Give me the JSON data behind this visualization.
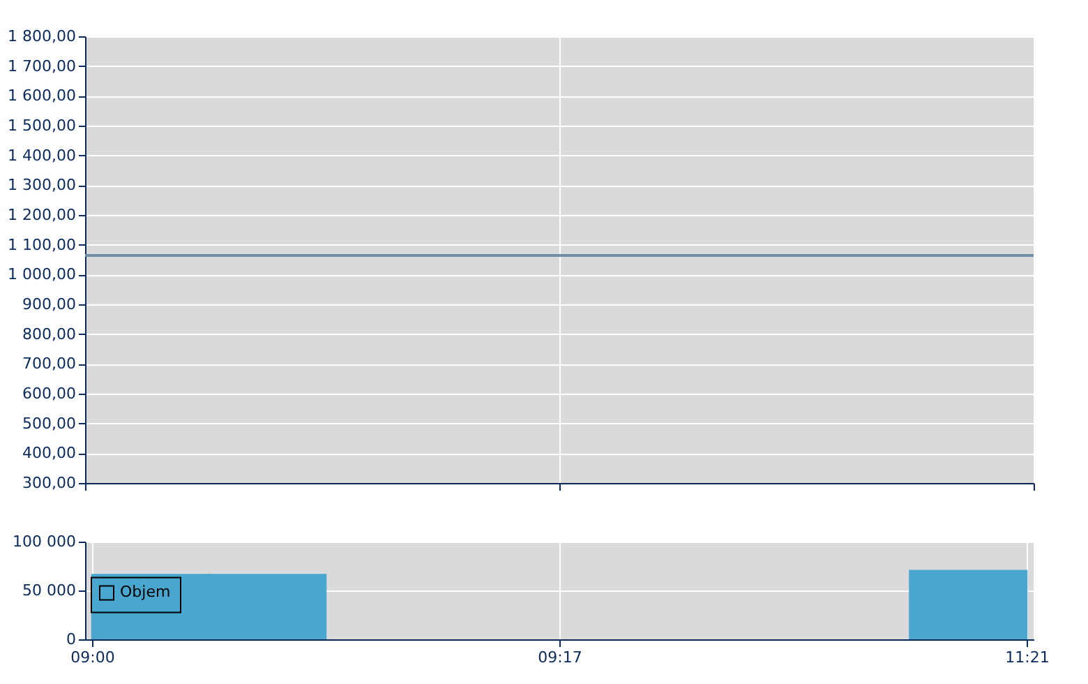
{
  "chart_data": [
    {
      "type": "line",
      "categories": [
        null,
        null,
        null,
        null,
        null,
        null,
        null,
        null,
        null,
        null,
        null,
        null,
        null,
        null,
        null,
        null,
        null
      ],
      "values": [
        1064,
        1064,
        1064,
        1064,
        1064,
        1064,
        1064,
        1064,
        1064,
        1064,
        1064,
        1064,
        1064,
        1064,
        1064,
        1064,
        1064
      ],
      "color": "#6f8fa8",
      "ylim": [
        300,
        1800
      ],
      "yticks": [
        {
          "value": 300,
          "label": "300,00"
        },
        {
          "value": 400,
          "label": "400,00"
        },
        {
          "value": 500,
          "label": "500,00"
        },
        {
          "value": 600,
          "label": "600,00"
        },
        {
          "value": 700,
          "label": "700,00"
        },
        {
          "value": 800,
          "label": "800,00"
        },
        {
          "value": 900,
          "label": "900,00"
        },
        {
          "value": 1000,
          "label": "1 000,00"
        },
        {
          "value": 1100,
          "label": "1 100,00"
        },
        {
          "value": 1200,
          "label": "1 200,00"
        },
        {
          "value": 1300,
          "label": "1 300,00"
        },
        {
          "value": 1400,
          "label": "1 400,00"
        },
        {
          "value": 1500,
          "label": "1 500,00"
        },
        {
          "value": 1600,
          "label": "1 600,00"
        },
        {
          "value": 1700,
          "label": "1 700,00"
        },
        {
          "value": 1800,
          "label": "1 800,00"
        }
      ],
      "grid": true,
      "tick_labels": "y",
      "line_style": "solid",
      "marker": "none"
    },
    {
      "type": "bar",
      "categories": [
        "09:00",
        null,
        null,
        null,
        null,
        null,
        null,
        null,
        "09:17",
        null,
        null,
        null,
        null,
        null,
        null,
        null,
        "11:21"
      ],
      "ylim": [
        0,
        100000
      ],
      "yticks": [
        {
          "value": 0,
          "label": "0"
        },
        {
          "value": 50000,
          "label": "50 000"
        },
        {
          "value": 100000,
          "label": "100 000"
        }
      ],
      "series": [
        {
          "name": "Objem",
          "color": "#48a6cf",
          "values": [
            null,
            67000,
            null,
            67000,
            null,
            null,
            null,
            null,
            null,
            null,
            null,
            null,
            null,
            null,
            null,
            71000,
            null
          ]
        }
      ],
      "grid": true,
      "legend": "left"
    }
  ]
}
